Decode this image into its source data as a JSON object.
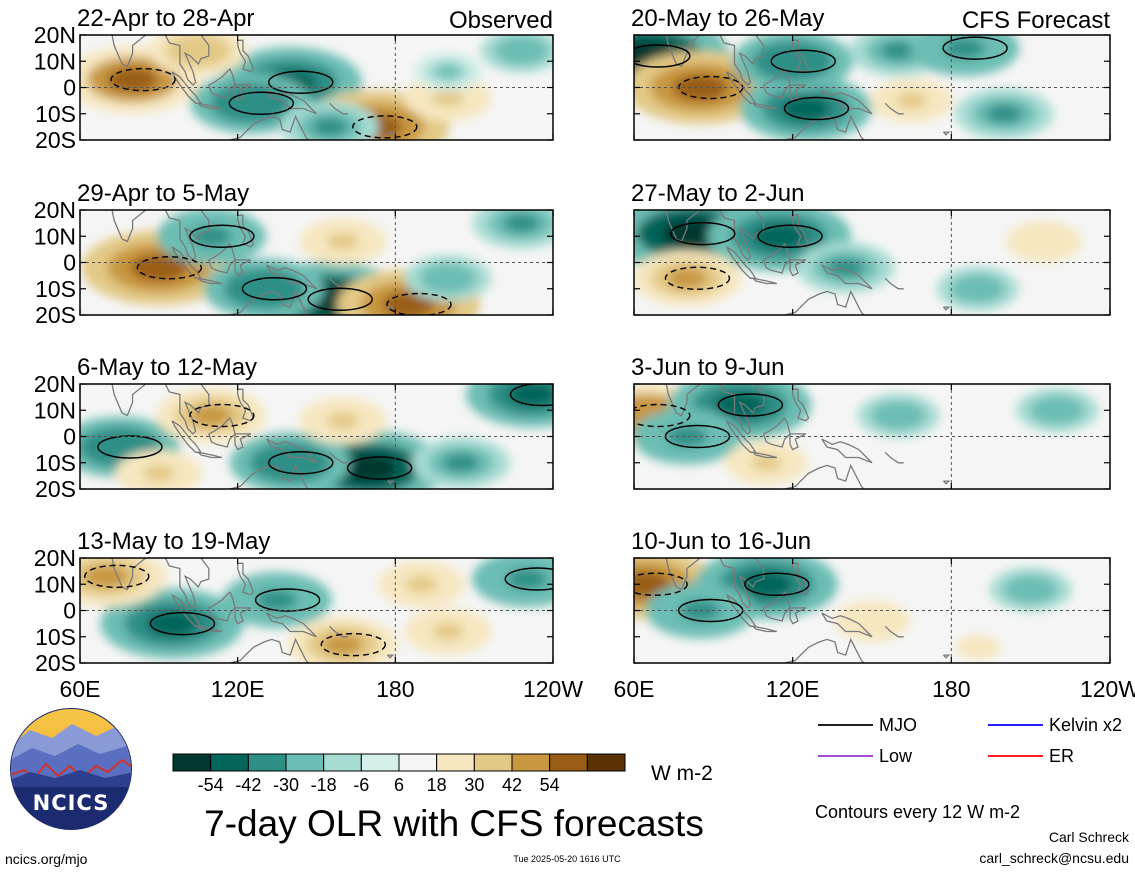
{
  "figure": {
    "title": "7-day OLR with CFS forecasts",
    "website": "ncics.org/mjo",
    "timestamp": "Tue 2025-05-20 1616 UTC",
    "author": "Carl Schreck",
    "email": "carl_schreck@ncsu.edu",
    "contour_note": "Contours every 12 W m-2",
    "logo_text": "NCICS"
  },
  "chart_data": {
    "type": "heatmap",
    "quantity": "7-day OLR anomaly",
    "unit": "W m-2",
    "observed_label": "Observed",
    "forecast_label": "CFS Forecast",
    "x_ticks": [
      "60E",
      "120E",
      "180",
      "120W"
    ],
    "x_tick_values": [
      60,
      120,
      180,
      240
    ],
    "xlim": [
      60,
      240
    ],
    "y_ticks": [
      "20N",
      "10N",
      "0",
      "10S",
      "20S"
    ],
    "y_tick_values": [
      20,
      10,
      0,
      -10,
      -20
    ],
    "ylim": [
      -20,
      20
    ],
    "reference_lines": {
      "equator": 0,
      "dateline": 180
    },
    "colorbar": {
      "tick_labels": [
        "-54",
        "-42",
        "-30",
        "-18",
        "-6",
        "6",
        "18",
        "30",
        "42",
        "54"
      ],
      "colors": [
        "#01382f",
        "#04655a",
        "#2e8f87",
        "#6cbdb3",
        "#a7dcd3",
        "#d4efe9",
        "#f5f5f5",
        "#f6e7c0",
        "#e3c986",
        "#c8973f",
        "#9a5d17",
        "#5a3205"
      ]
    },
    "legend": [
      {
        "label": "MJO",
        "color": "#000000"
      },
      {
        "label": "Kelvin x2",
        "color": "#0000ff"
      },
      {
        "label": "Low",
        "color": "#9a32cd"
      },
      {
        "label": "ER",
        "color": "#ff0000"
      }
    ],
    "panels": [
      {
        "column": "observed",
        "period": "22-Apr to 28-Apr",
        "anomalies": [
          {
            "lon": 80,
            "lat": 3,
            "value": 42
          },
          {
            "lon": 140,
            "lat": 2,
            "value": -45
          },
          {
            "lon": 125,
            "lat": -6,
            "value": -35
          },
          {
            "lon": 172,
            "lat": -15,
            "value": 48
          },
          {
            "lon": 105,
            "lat": 14,
            "value": 25
          },
          {
            "lon": 200,
            "lat": -4,
            "value": 20
          },
          {
            "lon": 155,
            "lat": -15,
            "value": -25
          },
          {
            "lon": 228,
            "lat": 14,
            "value": -18
          },
          {
            "lon": 200,
            "lat": 6,
            "value": -12
          }
        ]
      },
      {
        "column": "observed",
        "period": "29-Apr to 5-May",
        "anomalies": [
          {
            "lon": 90,
            "lat": -2,
            "value": 50
          },
          {
            "lon": 155,
            "lat": -14,
            "value": -50
          },
          {
            "lon": 185,
            "lat": -16,
            "value": 45
          },
          {
            "lon": 110,
            "lat": 10,
            "value": -30
          },
          {
            "lon": 130,
            "lat": -10,
            "value": -35
          },
          {
            "lon": 228,
            "lat": 15,
            "value": -25
          },
          {
            "lon": 200,
            "lat": -6,
            "value": -20
          },
          {
            "lon": 160,
            "lat": 8,
            "value": 20
          }
        ]
      },
      {
        "column": "observed",
        "period": "6-May to 12-May",
        "anomalies": [
          {
            "lon": 75,
            "lat": -4,
            "value": -35
          },
          {
            "lon": 170,
            "lat": -12,
            "value": -50
          },
          {
            "lon": 140,
            "lat": -10,
            "value": -35
          },
          {
            "lon": 110,
            "lat": 8,
            "value": 30
          },
          {
            "lon": 90,
            "lat": -14,
            "value": 20
          },
          {
            "lon": 232,
            "lat": 16,
            "value": -40
          },
          {
            "lon": 160,
            "lat": 6,
            "value": 20
          },
          {
            "lon": 205,
            "lat": -10,
            "value": -25
          }
        ]
      },
      {
        "column": "observed",
        "period": "13-May to 19-May",
        "anomalies": [
          {
            "lon": 95,
            "lat": -5,
            "value": -45
          },
          {
            "lon": 70,
            "lat": 13,
            "value": 35
          },
          {
            "lon": 160,
            "lat": -13,
            "value": 30
          },
          {
            "lon": 135,
            "lat": 4,
            "value": -30
          },
          {
            "lon": 230,
            "lat": 12,
            "value": -30
          },
          {
            "lon": 190,
            "lat": 10,
            "value": 20
          },
          {
            "lon": 200,
            "lat": -8,
            "value": 20
          }
        ]
      },
      {
        "column": "forecast",
        "period": "20-May to 26-May",
        "anomalies": [
          {
            "lon": 65,
            "lat": 12,
            "value": -55
          },
          {
            "lon": 85,
            "lat": 0,
            "value": 48
          },
          {
            "lon": 125,
            "lat": -8,
            "value": -40
          },
          {
            "lon": 120,
            "lat": 10,
            "value": -35
          },
          {
            "lon": 160,
            "lat": 14,
            "value": -25
          },
          {
            "lon": 185,
            "lat": 15,
            "value": -30
          },
          {
            "lon": 200,
            "lat": -10,
            "value": -25
          },
          {
            "lon": 165,
            "lat": -5,
            "value": 18
          }
        ]
      },
      {
        "column": "forecast",
        "period": "27-May to 2-Jun",
        "anomalies": [
          {
            "lon": 82,
            "lat": 11,
            "value": -55
          },
          {
            "lon": 115,
            "lat": 10,
            "value": -45
          },
          {
            "lon": 80,
            "lat": -6,
            "value": 30
          },
          {
            "lon": 140,
            "lat": -2,
            "value": -25
          },
          {
            "lon": 215,
            "lat": 8,
            "value": 15
          },
          {
            "lon": 190,
            "lat": -10,
            "value": -18
          }
        ]
      },
      {
        "column": "forecast",
        "period": "3-Jun to 9-Jun",
        "anomalies": [
          {
            "lon": 65,
            "lat": 8,
            "value": 40
          },
          {
            "lon": 100,
            "lat": 12,
            "value": -45
          },
          {
            "lon": 80,
            "lat": 0,
            "value": -30
          },
          {
            "lon": 160,
            "lat": 8,
            "value": -18
          },
          {
            "lon": 220,
            "lat": 10,
            "value": -18
          },
          {
            "lon": 110,
            "lat": -10,
            "value": 18
          }
        ]
      },
      {
        "column": "forecast",
        "period": "10-Jun to 16-Jun",
        "anomalies": [
          {
            "lon": 64,
            "lat": 10,
            "value": 45
          },
          {
            "lon": 110,
            "lat": 10,
            "value": -45
          },
          {
            "lon": 85,
            "lat": 0,
            "value": -30
          },
          {
            "lon": 150,
            "lat": -4,
            "value": 15
          },
          {
            "lon": 210,
            "lat": 8,
            "value": -18
          },
          {
            "lon": 190,
            "lat": -14,
            "value": 12
          }
        ]
      }
    ]
  }
}
